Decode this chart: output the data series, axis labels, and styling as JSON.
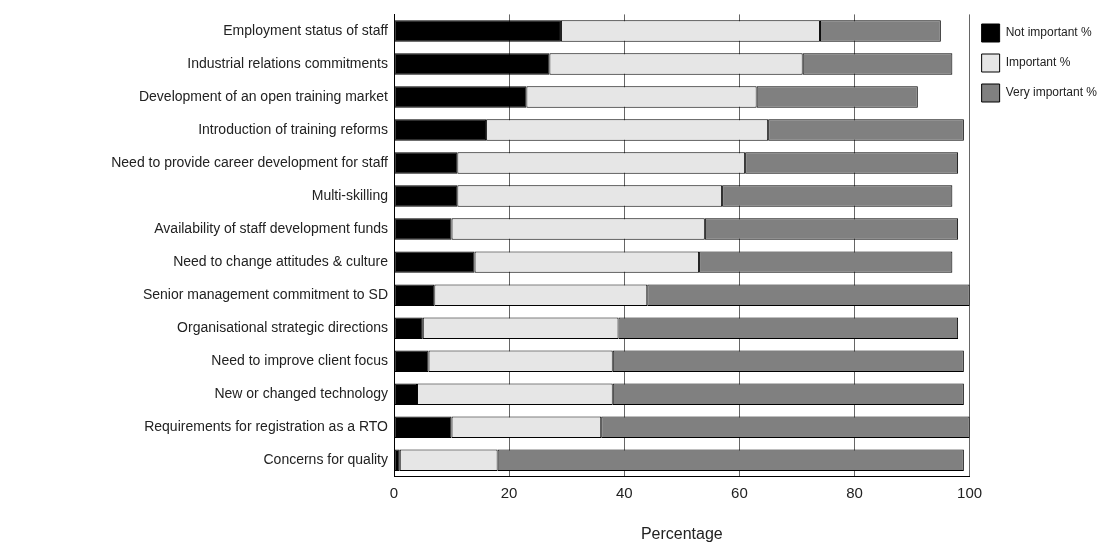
{
  "chart_data": {
    "type": "bar",
    "orientation": "horizontal",
    "stacked": true,
    "xlabel": "Percentage",
    "categories": [
      "Employment status of staff",
      "Industrial relations commitments",
      "Development of an open training market",
      "Introduction of training reforms",
      "Need to provide career development for staff",
      "Multi-skilling",
      "Availability of staff development funds",
      "Need to change attitudes & culture",
      "Senior management commitment to SD",
      "Organisational strategic directions",
      "Need to improve client focus",
      "New or changed technology",
      "Requirements for registration as a RTO",
      "Concerns for quality"
    ],
    "series": [
      {
        "name": "Not important %",
        "color": "#000000",
        "values": [
          29,
          27,
          23,
          16,
          11,
          11,
          10,
          14,
          7,
          5,
          6,
          4,
          10,
          1
        ]
      },
      {
        "name": "Important %",
        "color": "#e6e6e6",
        "values": [
          45,
          44,
          40,
          49,
          50,
          46,
          44,
          39,
          37,
          34,
          32,
          34,
          26,
          17
        ]
      },
      {
        "name": "Very important %",
        "color": "#808080",
        "values": [
          21,
          26,
          28,
          34,
          37,
          40,
          44,
          44,
          56,
          59,
          61,
          61,
          64,
          81
        ]
      }
    ],
    "xlim": [
      0,
      100
    ],
    "xticks": [
      0,
      20,
      40,
      60,
      80,
      100
    ],
    "grid": "x",
    "legend": "top right"
  }
}
